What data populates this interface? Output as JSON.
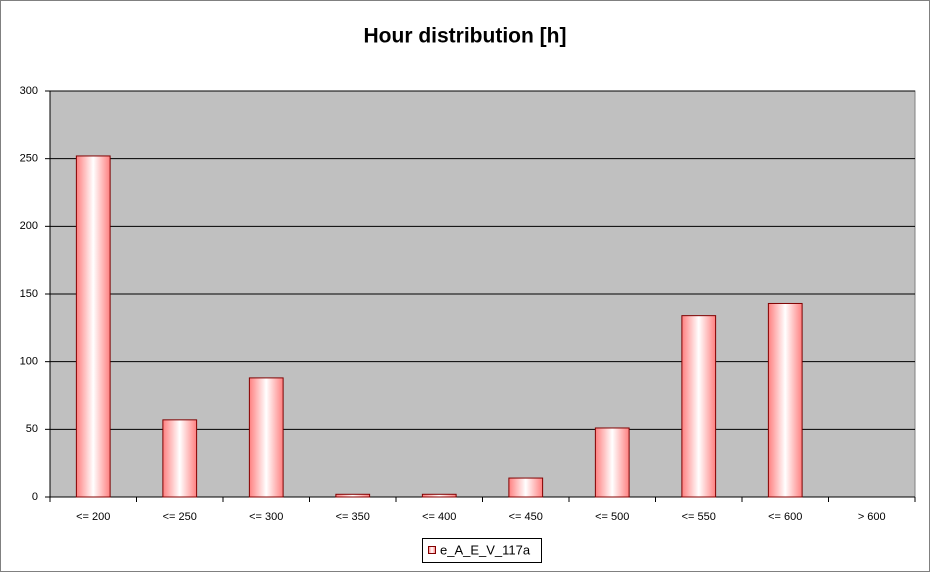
{
  "chart_data": {
    "type": "bar",
    "title": "Hour distribution [h]",
    "categories": [
      "<= 200",
      "<= 250",
      "<= 300",
      "<= 350",
      "<= 400",
      "<= 450",
      "<= 500",
      "<= 550",
      "<= 600",
      "> 600"
    ],
    "series": [
      {
        "name": "e_A_E_V_117a",
        "color": "#ff8080",
        "values": [
          252,
          57,
          88,
          2,
          2,
          14,
          51,
          134,
          143,
          0
        ]
      }
    ],
    "ylim": [
      0,
      300
    ],
    "yticks": [
      0,
      50,
      100,
      150,
      200,
      250,
      300
    ],
    "grid": true
  }
}
